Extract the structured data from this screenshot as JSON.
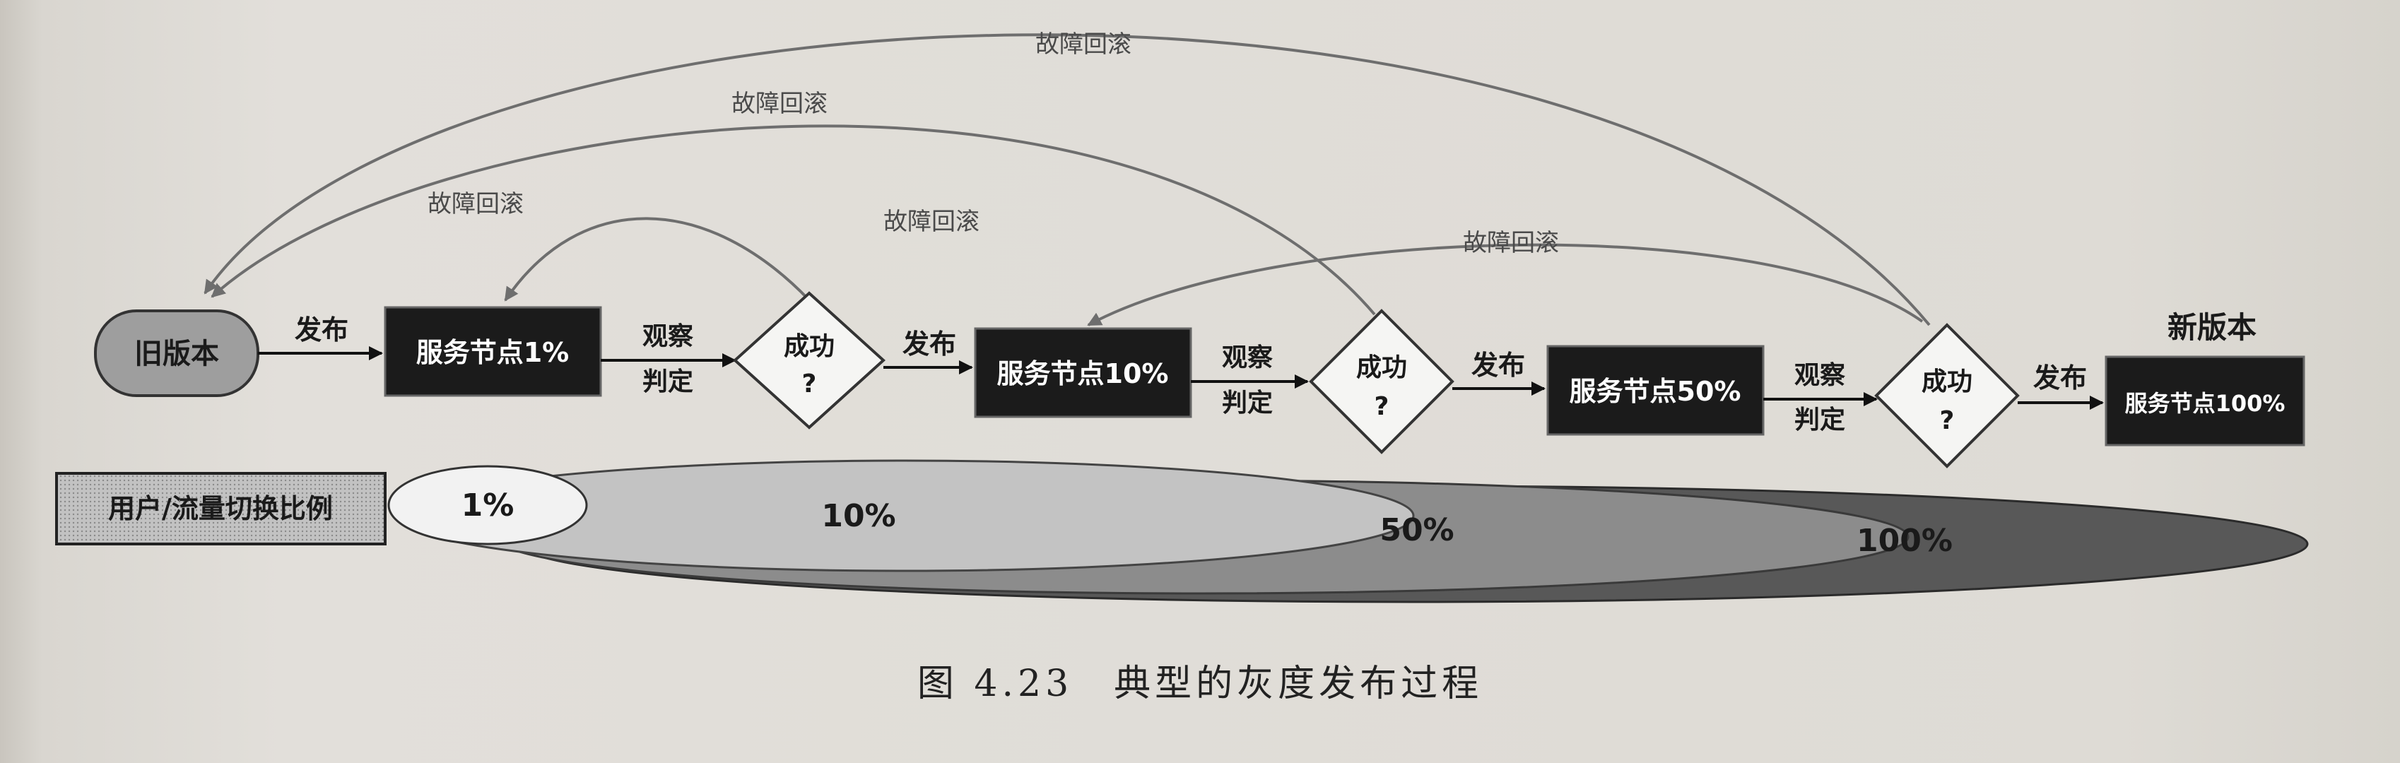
{
  "diagram": {
    "old_version": "旧版本",
    "new_version_title": "新版本",
    "nodes": {
      "node_1": "服务节点1%",
      "node_10": "服务节点10%",
      "node_50": "服务节点50%",
      "node_100": "服务节点100%"
    },
    "publish_label": "发布",
    "observe_line1": "观察",
    "observe_line2": "判定",
    "success_line1": "成功",
    "success_line2": "?",
    "rollback_label": "故障回滚",
    "ratio_label": "用户/流量切换比例",
    "ratios": [
      "1%",
      "10%",
      "50%",
      "100%"
    ]
  },
  "caption": "图 4.23　典型的灰度发布过程",
  "colors": {
    "node_fill": "#1b1b1b",
    "old_version_fill": "#9e9e9e",
    "ratio_label_fill": "#bdbdbd",
    "ellipse_100": "#585858",
    "ellipse_50": "#8c8c8c",
    "ellipse_10": "#c3c3c3",
    "ellipse_1": "#f2f2f2",
    "arc_stroke": "#6e6e6e"
  }
}
